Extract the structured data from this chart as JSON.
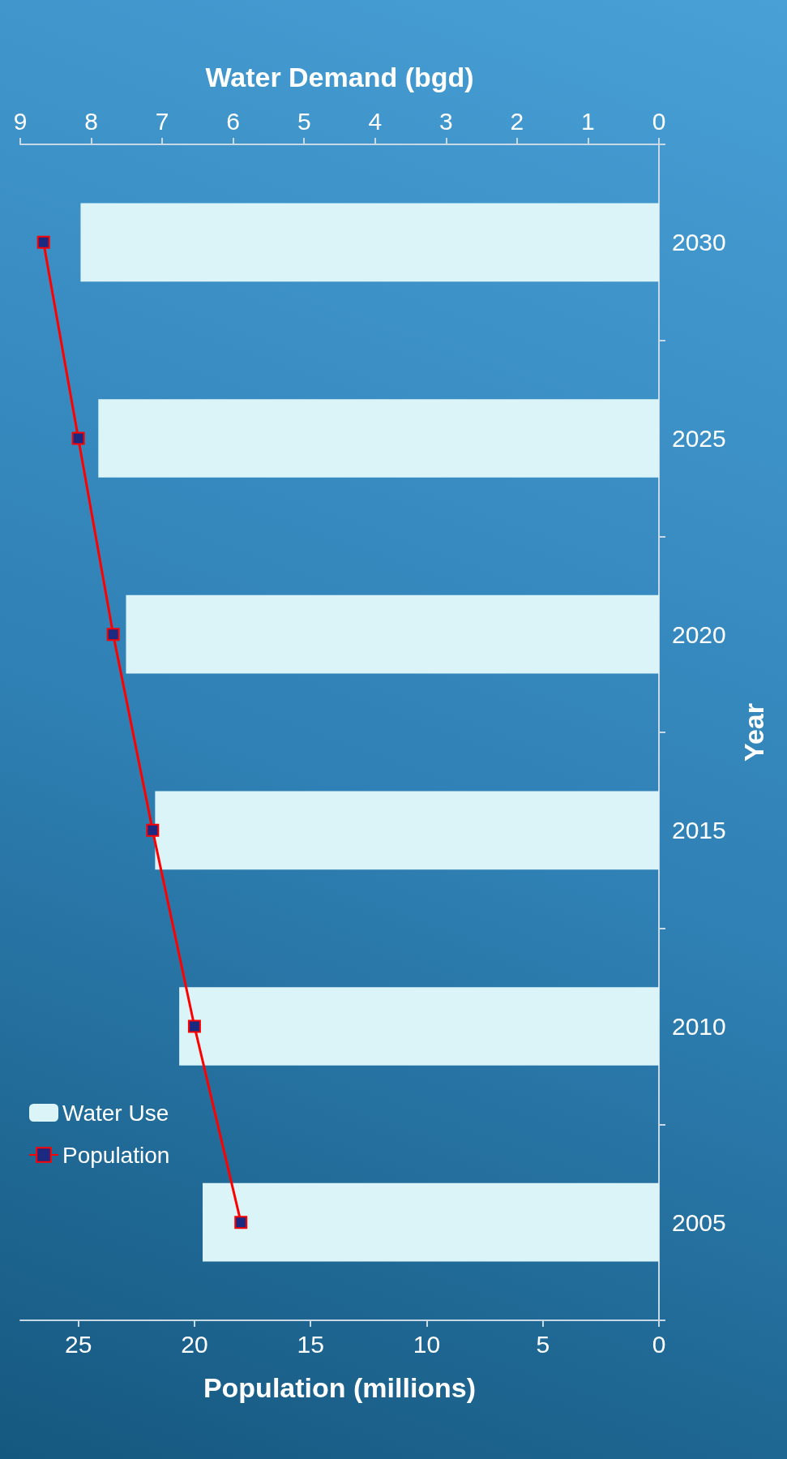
{
  "chart_data": {
    "type": "bar",
    "orientation": "horizontal",
    "categories": [
      "2030",
      "2025",
      "2020",
      "2015",
      "2010",
      "2005"
    ],
    "ylabel": "Year",
    "xlabel": "Population (millions)",
    "x2label": "Water Demand (bgd)",
    "series": [
      {
        "name": "Water Use",
        "axis": "x2",
        "color": "#daf4f8",
        "values": [
          8.15,
          7.9,
          7.51,
          7.1,
          6.76,
          6.43
        ]
      },
      {
        "name": "Population",
        "type": "line",
        "color": "#ff0000",
        "values": [
          26.5,
          25,
          23.5,
          21.8,
          20,
          18
        ]
      }
    ],
    "xlim": [
      27.5,
      0
    ],
    "xticks": [
      0,
      5,
      10,
      15,
      20,
      25
    ],
    "x2lim": [
      9,
      0
    ],
    "x2ticks": [
      0,
      1,
      2,
      3,
      4,
      5,
      6,
      7,
      8,
      9
    ],
    "marker": "square",
    "line_style": "solid",
    "legend": "bottom left"
  }
}
